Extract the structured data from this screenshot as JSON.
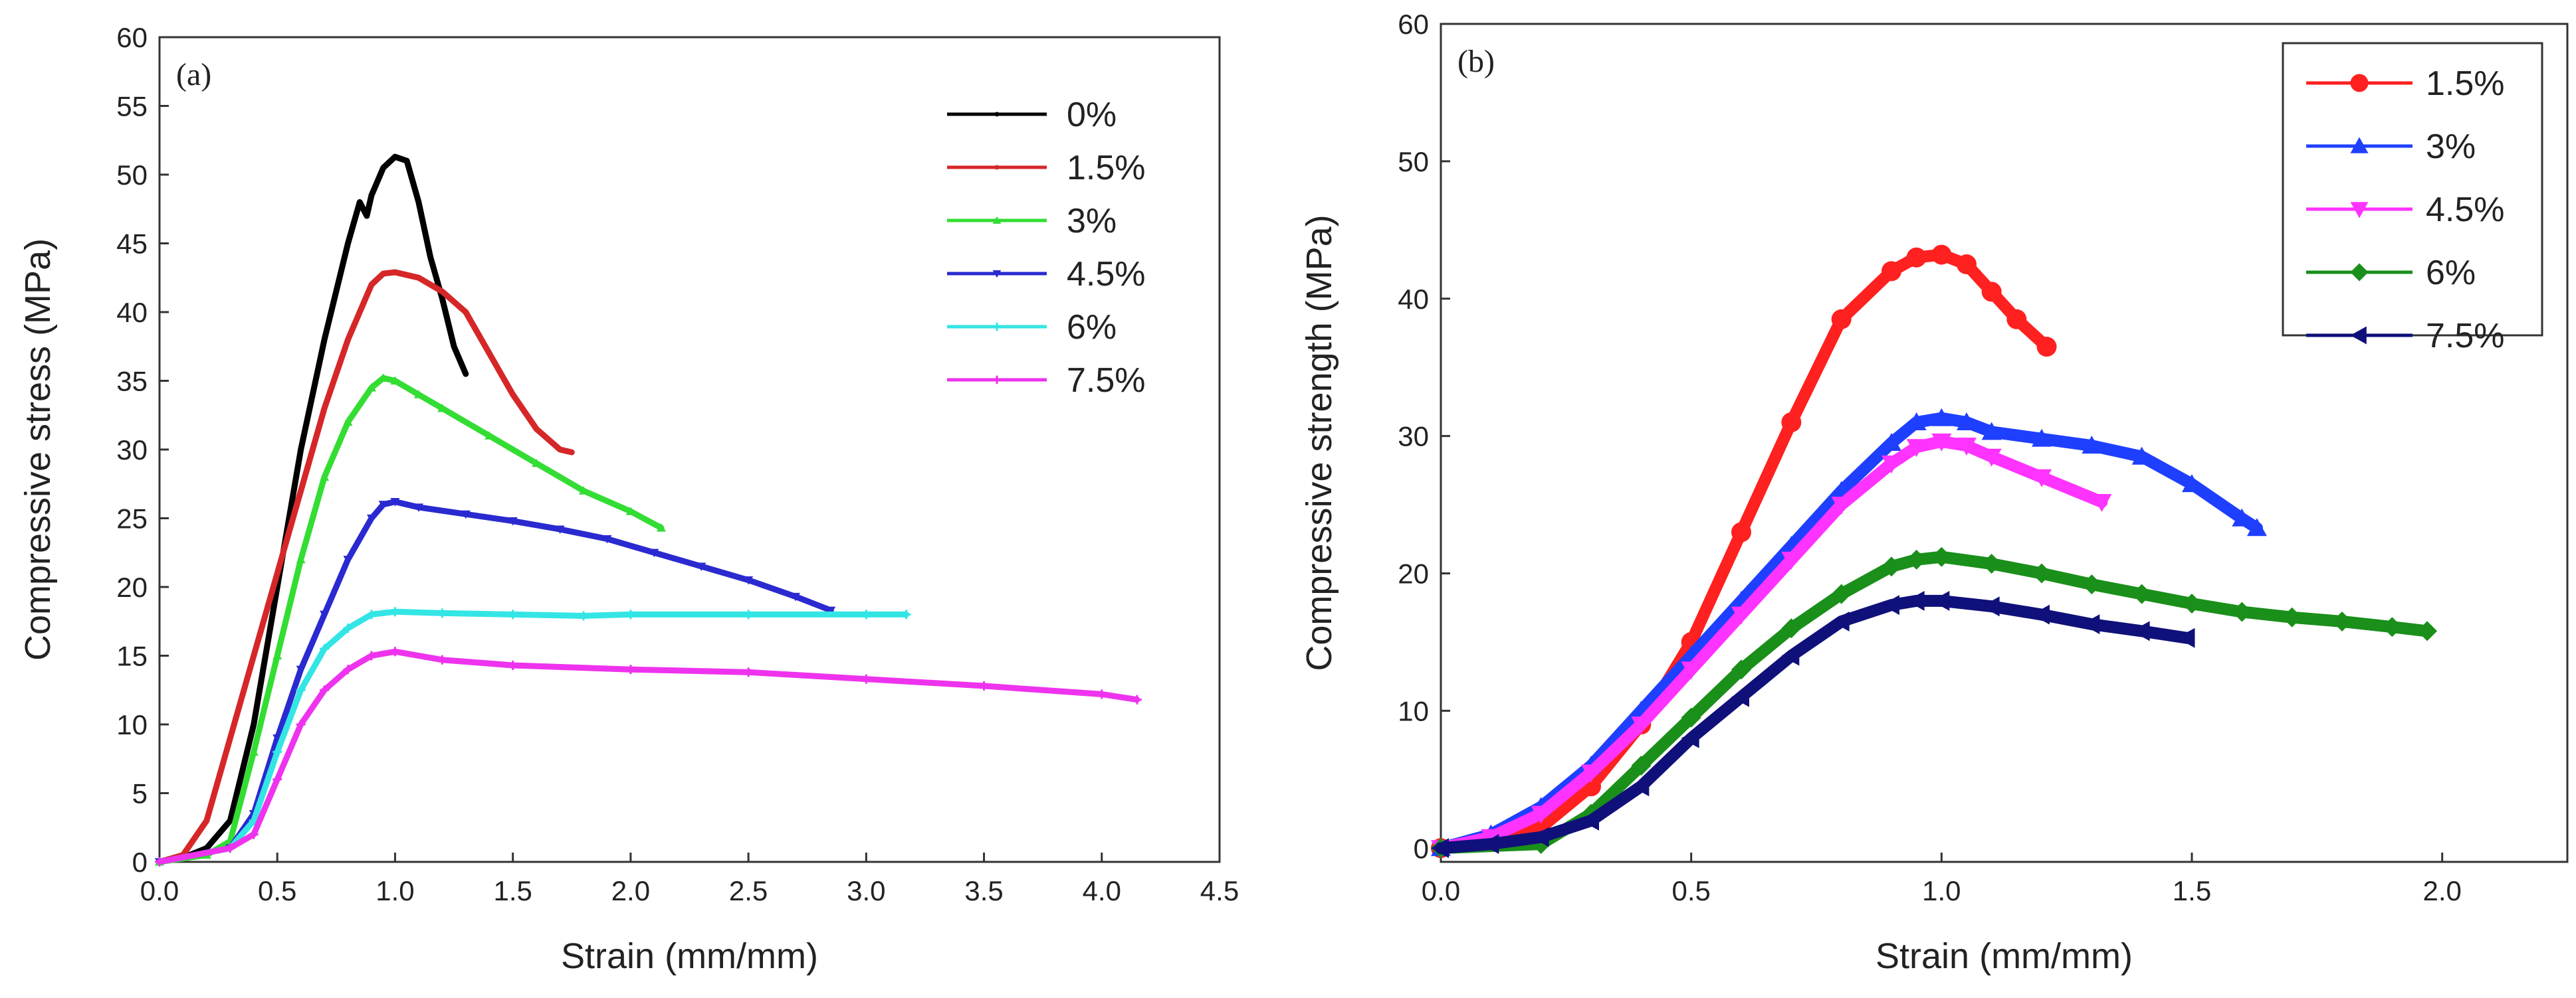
{
  "chart_data": [
    {
      "type": "line",
      "panel_label": "(a)",
      "xlabel": "Strain (mm/mm)",
      "ylabel": "Compressive stress (MPa)",
      "xlim": [
        0,
        4.5
      ],
      "ylim": [
        0,
        60
      ],
      "xticks": [
        0,
        0.5,
        1,
        1.5,
        2,
        2.5,
        3,
        3.5,
        4,
        4.5
      ],
      "yticks": [
        0,
        5,
        10,
        15,
        20,
        25,
        30,
        35,
        40,
        45,
        50,
        55,
        60
      ],
      "xtick_labels": [
        "0.0",
        "0.5",
        "1.0",
        "1.5",
        "2.0",
        "2.5",
        "3.0",
        "3.5",
        "4.0",
        "4.5"
      ],
      "ytick_labels": [
        "0",
        "5",
        "10",
        "15",
        "20",
        "25",
        "30",
        "35",
        "40",
        "45",
        "50",
        "55",
        "60"
      ],
      "grid": false,
      "legend_position": "top-right",
      "series": [
        {
          "name": "0%",
          "color": "#000000",
          "marker": "dot",
          "x": [
            0,
            0.1,
            0.2,
            0.3,
            0.4,
            0.5,
            0.6,
            0.7,
            0.8,
            0.85,
            0.88,
            0.9,
            0.95,
            1.0,
            1.05,
            1.1,
            1.15,
            1.2,
            1.25,
            1.3
          ],
          "y": [
            0,
            0.3,
            1.0,
            3.0,
            10.0,
            20.0,
            30.0,
            38.0,
            45.0,
            48.0,
            47.0,
            48.5,
            50.5,
            51.3,
            51.0,
            48.0,
            44.0,
            41.0,
            37.5,
            35.5
          ]
        },
        {
          "name": "1.5%",
          "color": "#d62728",
          "marker": "dot",
          "x": [
            0,
            0.1,
            0.2,
            0.3,
            0.4,
            0.5,
            0.6,
            0.7,
            0.8,
            0.9,
            0.95,
            1.0,
            1.1,
            1.2,
            1.3,
            1.4,
            1.5,
            1.6,
            1.7,
            1.75
          ],
          "y": [
            0,
            0.5,
            3.0,
            9.0,
            15.0,
            21.0,
            27.0,
            33.0,
            38.0,
            42.0,
            42.8,
            42.9,
            42.5,
            41.5,
            40.0,
            37.0,
            34.0,
            31.5,
            30.0,
            29.8
          ]
        },
        {
          "name": "3%",
          "color": "#33dd33",
          "marker": "tri-up",
          "x": [
            0,
            0.2,
            0.3,
            0.4,
            0.5,
            0.6,
            0.7,
            0.8,
            0.9,
            0.95,
            1.0,
            1.1,
            1.2,
            1.4,
            1.6,
            1.8,
            2.0,
            2.13
          ],
          "y": [
            0,
            0.5,
            1.5,
            8.0,
            15.0,
            22.0,
            28.0,
            32.0,
            34.5,
            35.2,
            35.0,
            34.0,
            33.0,
            31.0,
            29.0,
            27.0,
            25.5,
            24.3
          ]
        },
        {
          "name": "4.5%",
          "color": "#2a2ad0",
          "marker": "tri-down",
          "x": [
            0,
            0.3,
            0.4,
            0.5,
            0.6,
            0.7,
            0.8,
            0.9,
            0.95,
            1.0,
            1.1,
            1.3,
            1.5,
            1.7,
            1.9,
            2.1,
            2.3,
            2.5,
            2.7,
            2.85
          ],
          "y": [
            0,
            1.0,
            3.5,
            9.0,
            14.0,
            18.0,
            22.0,
            25.0,
            26.0,
            26.2,
            25.8,
            25.3,
            24.8,
            24.2,
            23.5,
            22.5,
            21.5,
            20.5,
            19.3,
            18.3
          ]
        },
        {
          "name": "6%",
          "color": "#33e5e5",
          "marker": "plus",
          "x": [
            0,
            0.3,
            0.4,
            0.5,
            0.6,
            0.7,
            0.8,
            0.9,
            1.0,
            1.2,
            1.5,
            1.8,
            2.0,
            2.5,
            3.0,
            3.17
          ],
          "y": [
            0,
            1.0,
            3.0,
            8.0,
            12.5,
            15.5,
            17.0,
            18.0,
            18.2,
            18.1,
            18.0,
            17.9,
            18.0,
            18.0,
            18.0,
            18.0
          ]
        },
        {
          "name": "7.5%",
          "color": "#ee33ee",
          "marker": "plus",
          "x": [
            0,
            0.3,
            0.4,
            0.5,
            0.6,
            0.7,
            0.8,
            0.9,
            1.0,
            1.2,
            1.5,
            2.0,
            2.5,
            3.0,
            3.5,
            4.0,
            4.15
          ],
          "y": [
            0,
            1.0,
            2.0,
            6.0,
            10.0,
            12.5,
            14.0,
            15.0,
            15.3,
            14.7,
            14.3,
            14.0,
            13.8,
            13.3,
            12.8,
            12.2,
            11.8
          ]
        }
      ]
    },
    {
      "type": "line",
      "panel_label": "(b)",
      "xlabel": "Strain (mm/mm)",
      "ylabel": "Compressive strength (MPa)",
      "xlim": [
        0,
        2.25
      ],
      "ylim": [
        -1,
        60
      ],
      "xticks": [
        0,
        0.5,
        1,
        1.5,
        2
      ],
      "yticks": [
        0,
        10,
        20,
        30,
        40,
        50,
        60
      ],
      "xtick_labels": [
        "0.0",
        "0.5",
        "1.0",
        "1.5",
        "2.0"
      ],
      "ytick_labels": [
        "0",
        "10",
        "20",
        "30",
        "40",
        "50",
        "60"
      ],
      "grid": false,
      "legend_position": "top-right",
      "series": [
        {
          "name": "1.5%",
          "color": "#ff2020",
          "marker": "circle",
          "x": [
            0,
            0.1,
            0.2,
            0.3,
            0.4,
            0.5,
            0.6,
            0.7,
            0.8,
            0.9,
            0.95,
            1.0,
            1.05,
            1.1,
            1.15,
            1.21
          ],
          "y": [
            0,
            0.5,
            1.5,
            4.5,
            9.0,
            15.0,
            23.0,
            31.0,
            38.5,
            42.0,
            43.0,
            43.2,
            42.5,
            40.5,
            38.5,
            36.5
          ]
        },
        {
          "name": "3%",
          "color": "#1f3fff",
          "marker": "tri-up",
          "x": [
            0,
            0.1,
            0.2,
            0.3,
            0.4,
            0.5,
            0.6,
            0.7,
            0.8,
            0.9,
            0.95,
            1.0,
            1.05,
            1.1,
            1.2,
            1.3,
            1.4,
            1.5,
            1.6,
            1.63
          ],
          "y": [
            0,
            1.0,
            3.0,
            6.0,
            10.0,
            14.0,
            18.0,
            22.0,
            26.0,
            29.5,
            31.0,
            31.3,
            31.0,
            30.3,
            29.8,
            29.3,
            28.5,
            26.5,
            24.0,
            23.3
          ]
        },
        {
          "name": "4.5%",
          "color": "#ff33ff",
          "marker": "tri-down",
          "x": [
            0,
            0.1,
            0.2,
            0.3,
            0.4,
            0.5,
            0.6,
            0.7,
            0.8,
            0.9,
            0.95,
            1.0,
            1.05,
            1.1,
            1.2,
            1.32
          ],
          "y": [
            0,
            0.8,
            2.5,
            5.5,
            9.0,
            13.0,
            17.0,
            21.0,
            25.0,
            28.0,
            29.2,
            29.6,
            29.3,
            28.5,
            27.0,
            25.2
          ]
        },
        {
          "name": "6%",
          "color": "#1a8f1a",
          "marker": "diamond",
          "x": [
            0,
            0.2,
            0.3,
            0.4,
            0.5,
            0.6,
            0.7,
            0.8,
            0.9,
            0.95,
            1.0,
            1.1,
            1.2,
            1.3,
            1.4,
            1.5,
            1.6,
            1.7,
            1.8,
            1.9,
            1.97
          ],
          "y": [
            0,
            0.3,
            2.5,
            6.0,
            9.5,
            13.0,
            16.0,
            18.5,
            20.5,
            21.0,
            21.2,
            20.7,
            20.0,
            19.2,
            18.5,
            17.8,
            17.2,
            16.8,
            16.5,
            16.1,
            15.8
          ]
        },
        {
          "name": "7.5%",
          "color": "#10107a",
          "marker": "tri-left",
          "x": [
            0,
            0.1,
            0.2,
            0.3,
            0.4,
            0.5,
            0.6,
            0.7,
            0.8,
            0.9,
            0.95,
            1.0,
            1.1,
            1.2,
            1.3,
            1.4,
            1.49
          ],
          "y": [
            0,
            0.3,
            0.8,
            2.0,
            4.5,
            8.0,
            11.0,
            14.0,
            16.5,
            17.7,
            18.0,
            18.0,
            17.6,
            17.0,
            16.3,
            15.8,
            15.3
          ]
        }
      ]
    }
  ]
}
